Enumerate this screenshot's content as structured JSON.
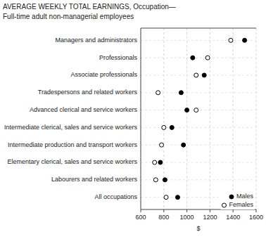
{
  "chart_data": {
    "type": "dot",
    "title": "AVERAGE WEEKLY TOTAL EARNINGS, Occupation—",
    "subtitle": "Full-time adult non-managerial employees",
    "categories": [
      "All occupations",
      "Labourers and related workers",
      "Elementary clerical, sales and service workers",
      "Intermediate production and transport workers",
      "Intermediate clerical, sales and service workers",
      "Advanced clerical and service workers",
      "Tradespersons and related workers",
      "Associate professionals",
      "Professionals",
      "Managers and administrators"
    ],
    "series": [
      {
        "name": "Males",
        "color": "#000000",
        "marker": "circle",
        "values": [
          920,
          810,
          770,
          970,
          870,
          1000,
          950,
          1150,
          1050,
          1500
        ]
      },
      {
        "name": "Females",
        "color": "#000000",
        "marker": "ring",
        "values": [
          820,
          730,
          720,
          780,
          800,
          1080,
          750,
          1080,
          1180,
          1380
        ]
      }
    ],
    "x_label": "$",
    "xlim": [
      600,
      1600
    ],
    "xticks": [
      600,
      800,
      1000,
      1200,
      1400,
      1600
    ],
    "grid": true,
    "legend": "lower right"
  }
}
